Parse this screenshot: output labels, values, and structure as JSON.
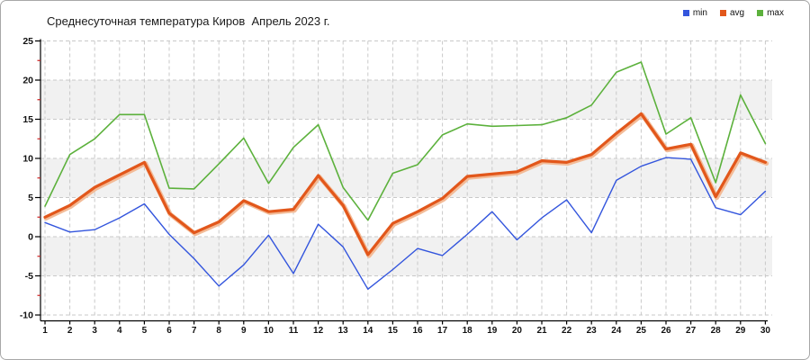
{
  "chart_data": {
    "type": "line",
    "title": "Среднесуточная температура Киров  Апрель 2023 г.",
    "xlabel": "",
    "ylabel": "",
    "x": [
      1,
      2,
      3,
      4,
      5,
      6,
      7,
      8,
      9,
      10,
      11,
      12,
      13,
      14,
      15,
      16,
      17,
      18,
      19,
      20,
      21,
      22,
      23,
      24,
      25,
      26,
      27,
      28,
      29,
      30
    ],
    "ylim": [
      -10,
      25
    ],
    "y_major_ticks": [
      25,
      20,
      15,
      10,
      5,
      0,
      -5,
      -10
    ],
    "y_minor_ticks": [
      22.5,
      17.5,
      12.5,
      7.5,
      2.5,
      -2.5,
      -7.5
    ],
    "grid": "dashed",
    "legend_position": "top-right",
    "band_color": "#f1f1f1",
    "gridline_color": "#c9c9c9",
    "axis_color": "#000000",
    "minor_tick_color": "#cc2222",
    "series": [
      {
        "name": "min",
        "color": "#3355dd",
        "values": [
          1.8,
          0.6,
          0.9,
          2.4,
          4.2,
          0.3,
          -2.8,
          -6.3,
          -3.6,
          0.2,
          -4.7,
          1.6,
          -1.3,
          -6.7,
          -4.2,
          -1.5,
          -2.4,
          0.3,
          3.2,
          -0.4,
          2.4,
          4.7,
          0.5,
          7.2,
          9.0,
          10.1,
          9.9,
          3.7,
          2.8,
          5.8
        ]
      },
      {
        "name": "avg",
        "color": "#e2571b",
        "halo_color": "#f3bb97",
        "values": [
          2.5,
          4.0,
          6.3,
          7.9,
          9.5,
          3.0,
          0.5,
          1.9,
          4.6,
          3.2,
          3.5,
          7.8,
          4.0,
          -2.3,
          1.7,
          3.2,
          4.9,
          7.7,
          8.0,
          8.3,
          9.7,
          9.5,
          10.5,
          13.2,
          15.7,
          11.2,
          11.8,
          5.1,
          10.7,
          9.5
        ]
      },
      {
        "name": "max",
        "color": "#5cb13c",
        "values": [
          3.9,
          10.5,
          12.5,
          15.6,
          15.6,
          6.2,
          6.1,
          9.3,
          12.6,
          6.8,
          11.4,
          14.3,
          6.3,
          2.1,
          8.1,
          9.2,
          13.0,
          14.4,
          14.1,
          14.2,
          14.3,
          15.2,
          16.8,
          21.0,
          22.3,
          13.1,
          15.2,
          6.9,
          18.1,
          11.9
        ]
      }
    ]
  }
}
